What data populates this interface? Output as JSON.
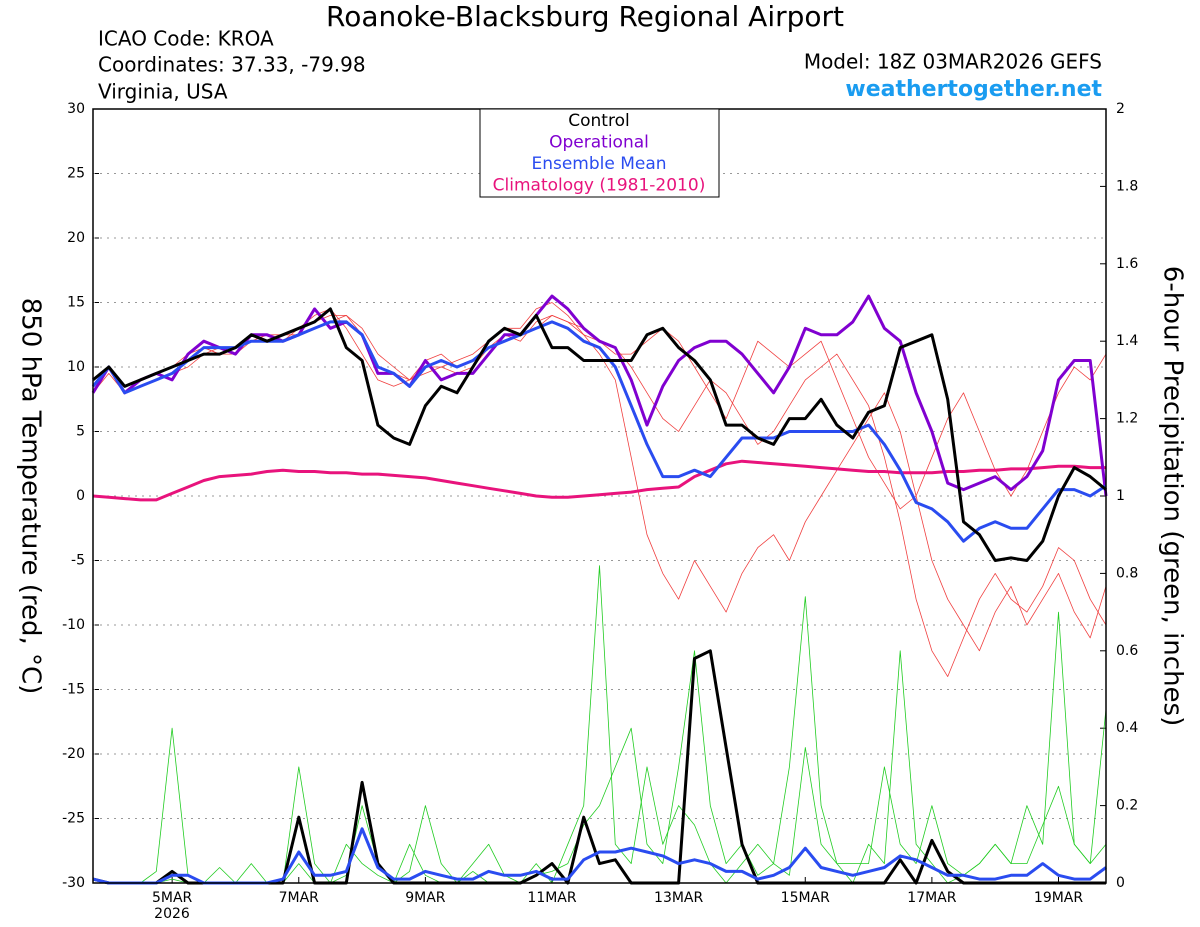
{
  "chart_data": {
    "type": "line",
    "title": "Roanoke-Blacksburg Regional Airport",
    "info": [
      "ICAO Code: KROA",
      "Coordinates: 37.33, -79.98",
      "Virginia, USA"
    ],
    "model": "Model: 18Z 03MAR2026 GEFS",
    "source": "weathertogether.net",
    "y_label": "850 hPa Temperature (red, °C)",
    "y2_label": "6-hour Precipitation (green, inches)",
    "x_sublabel": "2026",
    "categories": [
      null,
      null,
      null,
      null,
      null,
      "5MAR",
      null,
      null,
      null,
      null,
      null,
      null,
      null,
      "7MAR",
      null,
      null,
      null,
      null,
      null,
      null,
      null,
      "9MAR",
      null,
      null,
      null,
      null,
      null,
      null,
      null,
      "11MAR",
      null,
      null,
      null,
      null,
      null,
      null,
      null,
      "13MAR",
      null,
      null,
      null,
      null,
      null,
      null,
      null,
      "15MAR",
      null,
      null,
      null,
      null,
      null,
      null,
      null,
      "17MAR",
      null,
      null,
      null,
      null,
      null,
      null,
      null,
      "19MAR",
      null,
      null,
      null
    ],
    "ylim": [
      -30,
      30
    ],
    "yticks": [
      -30,
      -25,
      -20,
      -15,
      -10,
      -5,
      0,
      5,
      10,
      15,
      20,
      25,
      30
    ],
    "y2lim": [
      0,
      2
    ],
    "y2ticks": [
      0,
      0.2,
      0.4,
      0.6,
      0.8,
      1,
      1.2,
      1.4,
      1.6,
      1.8,
      2
    ],
    "grid": true,
    "legend": "top center",
    "series": [
      {
        "color": "#f04040",
        "values": [
          9,
          10,
          8,
          9,
          9.5,
          10,
          11,
          11.5,
          11,
          11.5,
          12.5,
          12,
          12.5,
          13,
          14,
          14.5,
          13,
          11,
          9,
          8.5,
          9,
          10,
          10,
          10.5,
          11,
          12,
          13,
          13,
          14.5,
          15,
          14,
          12.5,
          11,
          9,
          3,
          -3,
          -6,
          -8,
          -5,
          -7,
          -9,
          -6,
          -4,
          -3,
          -5,
          -2,
          0,
          2,
          4,
          6,
          8,
          5,
          0,
          -5,
          -8,
          -10,
          -12,
          -9,
          -7,
          -10,
          -8,
          -6,
          -9,
          -11,
          -7
        ]
      },
      {
        "color": "#f04040",
        "values": [
          8,
          9.5,
          8,
          8.5,
          9,
          9.5,
          10,
          11,
          11.5,
          11.5,
          12,
          12.5,
          12,
          13,
          13.5,
          14,
          14,
          13,
          11,
          10,
          9,
          10.5,
          11,
          10,
          10.5,
          11.5,
          12,
          12.5,
          13,
          14,
          13.5,
          12.5,
          12,
          11.5,
          10,
          8,
          6,
          5,
          7,
          9,
          8,
          6,
          4,
          5,
          7,
          9,
          10,
          11,
          9,
          7,
          3,
          -2,
          -8,
          -12,
          -14,
          -11,
          -8,
          -6,
          -8,
          -9,
          -7,
          -4,
          -5,
          -8,
          -10
        ]
      },
      {
        "color": "#f04040",
        "values": [
          8.5,
          10,
          8,
          8.5,
          9,
          9.5,
          10.5,
          11.5,
          11,
          11,
          12,
          12.5,
          12.5,
          12.5,
          13,
          13.5,
          14,
          12.5,
          10,
          9.5,
          9,
          9.5,
          10,
          9.5,
          10,
          11.5,
          12.5,
          12,
          13.5,
          14,
          13.5,
          13,
          12,
          11,
          11,
          12,
          13,
          12,
          10,
          8,
          6,
          9,
          12,
          11,
          10,
          11,
          12,
          9,
          6,
          3,
          1,
          -1,
          0,
          3,
          6,
          8,
          5,
          2,
          0,
          2,
          5,
          8,
          10,
          9,
          11
        ]
      },
      {
        "color": "#22cc22",
        "axis": "y2",
        "values": [
          0.01,
          0,
          0,
          0,
          0,
          0.01,
          0,
          0,
          0.04,
          0,
          0,
          0,
          0,
          0.3,
          0.05,
          0,
          0.02,
          0.2,
          0.05,
          0,
          0.1,
          0.02,
          0,
          0,
          0.03,
          0,
          0,
          0,
          0.05,
          0,
          0.1,
          0.2,
          0.82,
          0.1,
          0.05,
          0.3,
          0.1,
          0.2,
          0.15,
          0.05,
          0,
          0.05,
          0.1,
          0.05,
          0.02,
          0.35,
          0.1,
          0.05,
          0,
          0.1,
          0.05,
          0.6,
          0.1,
          0.05,
          0,
          0.02,
          0.05,
          0.1,
          0.05,
          0.2,
          0.1,
          0.7,
          0.1,
          0.05,
          0.1
        ]
      },
      {
        "color": "#22cc22",
        "axis": "y2",
        "values": [
          0,
          0,
          0,
          0,
          0.03,
          0.4,
          0.02,
          0,
          0,
          0,
          0.05,
          0,
          0,
          0.05,
          0,
          0,
          0.1,
          0.05,
          0.02,
          0,
          0.03,
          0.2,
          0.05,
          0,
          0.05,
          0.1,
          0.02,
          0,
          0.02,
          0.03,
          0.05,
          0.15,
          0.2,
          0.3,
          0.4,
          0.1,
          0.05,
          0.3,
          0.6,
          0.2,
          0.05,
          0.1,
          0.02,
          0.05,
          0.3,
          0.74,
          0.2,
          0.05,
          0.05,
          0.05,
          0.3,
          0.1,
          0.05,
          0.2,
          0.05,
          0.02,
          0.05,
          0.1,
          0.05,
          0.05,
          0.15,
          0.25,
          0.1,
          0.05,
          0.45
        ]
      },
      {
        "name": "Climatology (1981-2010)",
        "color": "#e8137c",
        "values": [
          0,
          -0.1,
          -0.2,
          -0.3,
          -0.3,
          0.2,
          0.7,
          1.2,
          1.5,
          1.6,
          1.7,
          1.9,
          2.0,
          1.9,
          1.9,
          1.8,
          1.8,
          1.7,
          1.7,
          1.6,
          1.5,
          1.4,
          1.2,
          1.0,
          0.8,
          0.6,
          0.4,
          0.2,
          0.0,
          -0.1,
          -0.1,
          0.0,
          0.1,
          0.2,
          0.3,
          0.5,
          0.6,
          0.7,
          1.5,
          2.0,
          2.5,
          2.7,
          2.6,
          2.5,
          2.4,
          2.3,
          2.2,
          2.1,
          2.0,
          1.9,
          1.9,
          1.8,
          1.8,
          1.8,
          1.9,
          1.9,
          2.0,
          2.0,
          2.1,
          2.1,
          2.2,
          2.3,
          2.3,
          2.2,
          2.2
        ]
      },
      {
        "name": "Control",
        "color": "#000000",
        "axis": "y2",
        "values": [
          0.01,
          0,
          0,
          0,
          0,
          0.03,
          0,
          0,
          0,
          0,
          0,
          0,
          0,
          0.17,
          0,
          0,
          0,
          0.26,
          0.05,
          0,
          0,
          0,
          0,
          0,
          0,
          0,
          0,
          0,
          0.02,
          0.05,
          0,
          0.17,
          0.05,
          0.06,
          0,
          0,
          0,
          0,
          0.58,
          0.6,
          0.35,
          0.1,
          0,
          0,
          0,
          0,
          0,
          0,
          0,
          0,
          0,
          0.06,
          0,
          0.11,
          0.03,
          0,
          0,
          0,
          0,
          0,
          0,
          0,
          0,
          0,
          0
        ]
      },
      {
        "name": "Ensemble Mean",
        "color": "#2a4cf0",
        "axis": "y2",
        "values": [
          0.01,
          0,
          0,
          0,
          0,
          0.02,
          0.02,
          0,
          0,
          0,
          0,
          0,
          0.01,
          0.08,
          0.02,
          0.02,
          0.03,
          0.14,
          0.04,
          0.01,
          0.01,
          0.03,
          0.02,
          0.01,
          0.01,
          0.03,
          0.02,
          0.02,
          0.03,
          0.01,
          0.01,
          0.06,
          0.08,
          0.08,
          0.09,
          0.08,
          0.07,
          0.05,
          0.06,
          0.05,
          0.03,
          0.03,
          0.01,
          0.02,
          0.04,
          0.09,
          0.04,
          0.03,
          0.02,
          0.03,
          0.04,
          0.07,
          0.06,
          0.04,
          0.02,
          0.02,
          0.01,
          0.01,
          0.02,
          0.02,
          0.05,
          0.02,
          0.01,
          0.01,
          0.04
        ]
      },
      {
        "name": "Operational",
        "color": "#8000d0",
        "values": [
          8,
          10,
          8,
          9,
          9.5,
          9,
          11,
          12,
          11.5,
          11,
          12.5,
          12.5,
          12,
          12.5,
          14.5,
          13,
          13.5,
          12.5,
          9.5,
          9.5,
          8.5,
          10.5,
          9,
          9.5,
          9.5,
          11,
          12.5,
          12.5,
          14,
          15.5,
          14.5,
          13,
          12,
          11.5,
          9,
          5.5,
          8.5,
          10.5,
          11.5,
          12,
          12,
          11,
          9.5,
          8,
          10,
          13,
          12.5,
          12.5,
          13.5,
          15.5,
          13,
          12,
          8,
          5,
          1,
          0.5,
          1,
          1.5,
          0.5,
          1.5,
          3.5,
          9,
          10.5,
          10.5,
          0
        ]
      },
      {
        "name": "Ensemble Mean",
        "color": "#2a4cf0",
        "values": [
          8.5,
          10,
          8,
          8.5,
          9,
          9.5,
          10.5,
          11.5,
          11.5,
          11.5,
          12,
          12,
          12,
          12.5,
          13,
          13.5,
          13.5,
          12.5,
          10,
          9.5,
          8.5,
          10,
          10.5,
          10,
          10.5,
          11.5,
          12,
          12.5,
          13,
          13.5,
          13,
          12,
          11.5,
          10,
          7,
          4,
          1.5,
          1.5,
          2,
          1.5,
          3,
          4.5,
          4.5,
          4.5,
          5,
          5,
          5,
          5,
          5,
          5.5,
          4,
          2,
          -0.5,
          -1,
          -2,
          -3.5,
          -2.5,
          -2,
          -2.5,
          -2.5,
          -1,
          0.5,
          0.5,
          0,
          0.8
        ]
      },
      {
        "name": "Control",
        "color": "#000000",
        "values": [
          9,
          10,
          8.5,
          9,
          9.5,
          10,
          10.5,
          11,
          11,
          11.5,
          12.5,
          12,
          12.5,
          13,
          13.5,
          14.5,
          11.5,
          10.5,
          5.5,
          4.5,
          4,
          7,
          8.5,
          8,
          10,
          12,
          13,
          12.5,
          14,
          11.5,
          11.5,
          10.5,
          10.5,
          10.5,
          10.5,
          12.5,
          13,
          11.5,
          10.5,
          9,
          5.5,
          5.5,
          4.5,
          4,
          6,
          6,
          7.5,
          5.5,
          4.5,
          6.5,
          7,
          11.5,
          12,
          12.5,
          7.5,
          -2,
          -3,
          -5,
          -4.8,
          -5,
          -3.5,
          0,
          2.2,
          1.5,
          0.5
        ]
      }
    ]
  }
}
